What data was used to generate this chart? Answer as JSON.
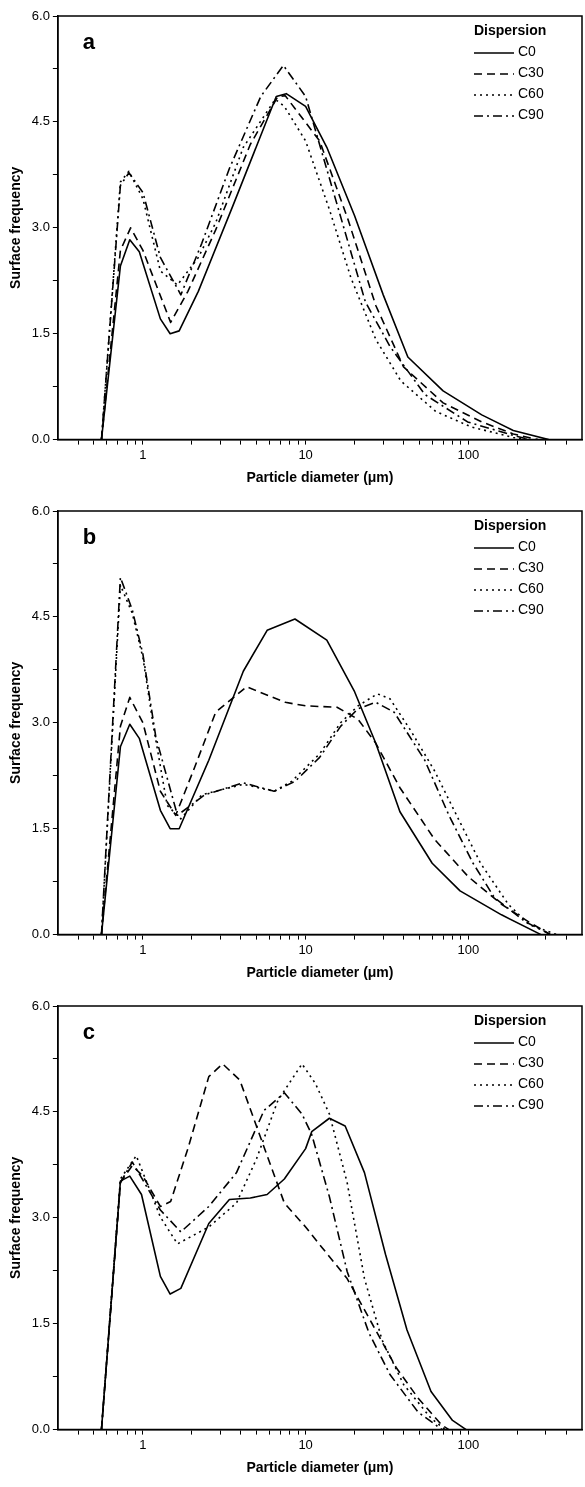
{
  "chart_data": [
    {
      "type": "line",
      "xlabel": "Particle diameter (μm)",
      "ylabel": "Surface frequency",
      "legend_title": "Dispersion",
      "legend": "top right",
      "marker": "none",
      "log": "x",
      "annotations": [
        "a"
      ],
      "xlim": [
        0.3,
        500
      ],
      "ylim": [
        0,
        6
      ],
      "xticks": [
        {
          "value": 0.4,
          "label": null
        },
        {
          "value": 0.5,
          "label": null
        },
        {
          "value": 0.6,
          "label": null
        },
        {
          "value": 0.7,
          "label": null
        },
        {
          "value": 0.8,
          "label": null
        },
        {
          "value": 0.9,
          "label": null
        },
        1,
        {
          "value": 2,
          "label": null
        },
        {
          "value": 3,
          "label": null
        },
        {
          "value": 4,
          "label": null
        },
        {
          "value": 5,
          "label": null
        },
        {
          "value": 6,
          "label": null
        },
        {
          "value": 7,
          "label": null
        },
        {
          "value": 8,
          "label": null
        },
        {
          "value": 9,
          "label": null
        },
        10,
        {
          "value": 20,
          "label": null
        },
        {
          "value": 30,
          "label": null
        },
        {
          "value": 40,
          "label": null
        },
        {
          "value": 50,
          "label": null
        },
        {
          "value": 60,
          "label": null
        },
        {
          "value": 70,
          "label": null
        },
        {
          "value": 80,
          "label": null
        },
        {
          "value": 90,
          "label": null
        },
        100,
        {
          "value": 200,
          "label": null
        },
        {
          "value": 300,
          "label": null
        },
        {
          "value": 400,
          "label": null
        }
      ],
      "yticks": [
        {
          "value": 0,
          "label": "0.0"
        },
        {
          "value": 0.75,
          "label": null
        },
        {
          "value": 1.5,
          "label": "1.5"
        },
        {
          "value": 2.25,
          "label": null
        },
        {
          "value": 3,
          "label": "3.0"
        },
        {
          "value": 3.75,
          "label": null
        },
        {
          "value": 4.5,
          "label": "4.5"
        },
        {
          "value": 5.25,
          "label": null
        },
        {
          "value": 6,
          "label": "6.0"
        }
      ],
      "series": [
        {
          "name": "C0",
          "color": "#000000",
          "line_style": "solid",
          "x": [
            0.556,
            0.727,
            0.83,
            0.95,
            1.28,
            1.47,
            1.67,
            2.19,
            3.57,
            5.04,
            6.6,
            7.6,
            10,
            13.5,
            20,
            30,
            42.5,
            70,
            121,
            189,
            312
          ],
          "values": [
            0,
            2.46,
            2.83,
            2.66,
            1.71,
            1.5,
            1.54,
            2.1,
            3.31,
            4.18,
            4.86,
            4.9,
            4.72,
            4.14,
            3.17,
            2.05,
            1.17,
            0.69,
            0.35,
            0.13,
            0
          ]
        },
        {
          "name": "C30",
          "color": "#000000",
          "line_style": "dashed",
          "x": [
            0.556,
            0.727,
            0.84,
            1.0,
            1.48,
            1.89,
            2.8,
            4.57,
            6.75,
            7.5,
            12.2,
            18.2,
            27,
            40,
            70,
            121,
            189,
            268
          ],
          "values": [
            0,
            2.68,
            3.0,
            2.68,
            1.66,
            2.1,
            2.97,
            4.18,
            4.86,
            4.87,
            4.23,
            3.12,
            1.9,
            1.03,
            0.52,
            0.25,
            0.08,
            0
          ]
        },
        {
          "name": "C60",
          "color": "#000000",
          "line_style": "dotted",
          "x": [
            0.556,
            0.727,
            0.82,
            1.0,
            1.28,
            1.63,
            2.19,
            2.8,
            4.14,
            6.5,
            7.4,
            10,
            14,
            19,
            27,
            38.5,
            63,
            104,
            189,
            240
          ],
          "values": [
            0,
            3.65,
            3.8,
            3.41,
            2.39,
            2.19,
            2.58,
            3.07,
            4.14,
            4.82,
            4.72,
            4.23,
            3.26,
            2.29,
            1.42,
            0.83,
            0.4,
            0.18,
            0.03,
            0
          ]
        },
        {
          "name": "C90",
          "color": "#000000",
          "line_style": "dashdot",
          "x": [
            0.556,
            0.727,
            0.82,
            1.0,
            1.28,
            1.71,
            2.3,
            3.4,
            5.3,
            7.3,
            10,
            15.7,
            23.3,
            33,
            54,
            99,
            189,
            240
          ],
          "values": [
            0,
            3.6,
            3.78,
            3.5,
            2.58,
            2.05,
            2.78,
            3.84,
            4.86,
            5.3,
            4.86,
            3.31,
            1.95,
            1.32,
            0.64,
            0.25,
            0.06,
            0
          ]
        }
      ]
    },
    {
      "type": "line",
      "xlabel": "Particle diameter (μm)",
      "ylabel": "Surface frequency",
      "legend_title": "Dispersion",
      "legend": "top right",
      "marker": "none",
      "log": "x",
      "annotations": [
        "b"
      ],
      "xlim": [
        0.3,
        500
      ],
      "ylim": [
        0,
        6
      ],
      "xticks": [
        {
          "value": 0.4,
          "label": null
        },
        {
          "value": 0.5,
          "label": null
        },
        {
          "value": 0.6,
          "label": null
        },
        {
          "value": 0.7,
          "label": null
        },
        {
          "value": 0.8,
          "label": null
        },
        {
          "value": 0.9,
          "label": null
        },
        1,
        {
          "value": 2,
          "label": null
        },
        {
          "value": 3,
          "label": null
        },
        {
          "value": 4,
          "label": null
        },
        {
          "value": 5,
          "label": null
        },
        {
          "value": 6,
          "label": null
        },
        {
          "value": 7,
          "label": null
        },
        {
          "value": 8,
          "label": null
        },
        {
          "value": 9,
          "label": null
        },
        10,
        {
          "value": 20,
          "label": null
        },
        {
          "value": 30,
          "label": null
        },
        {
          "value": 40,
          "label": null
        },
        {
          "value": 50,
          "label": null
        },
        {
          "value": 60,
          "label": null
        },
        {
          "value": 70,
          "label": null
        },
        {
          "value": 80,
          "label": null
        },
        {
          "value": 90,
          "label": null
        },
        100,
        {
          "value": 200,
          "label": null
        },
        {
          "value": 300,
          "label": null
        },
        {
          "value": 400,
          "label": null
        }
      ],
      "yticks": [
        {
          "value": 0,
          "label": "0.0"
        },
        {
          "value": 0.75,
          "label": null
        },
        {
          "value": 1.5,
          "label": "1.5"
        },
        {
          "value": 2.25,
          "label": null
        },
        {
          "value": 3,
          "label": "3.0"
        },
        {
          "value": 3.75,
          "label": null
        },
        {
          "value": 4.5,
          "label": "4.5"
        },
        {
          "value": 5.25,
          "label": null
        },
        {
          "value": 6,
          "label": "6.0"
        }
      ],
      "series": [
        {
          "name": "C0",
          "color": "#000000",
          "line_style": "solid",
          "x": [
            0.556,
            0.727,
            0.83,
            0.95,
            1.28,
            1.47,
            1.67,
            2.54,
            4.14,
            5.8,
            8.6,
            13.5,
            20,
            27,
            38,
            60,
            89,
            160,
            280
          ],
          "values": [
            0,
            2.66,
            2.98,
            2.78,
            1.76,
            1.5,
            1.5,
            2.47,
            3.73,
            4.31,
            4.47,
            4.17,
            3.44,
            2.71,
            1.74,
            1.01,
            0.62,
            0.28,
            0
          ]
        },
        {
          "name": "C30",
          "color": "#000000",
          "line_style": "dashed",
          "x": [
            0.556,
            0.727,
            0.83,
            1.0,
            1.28,
            1.59,
            2.08,
            2.8,
            4.34,
            7.5,
            10,
            15.6,
            21,
            27,
            38,
            62,
            100,
            160,
            235,
            320
          ],
          "values": [
            0,
            2.95,
            3.36,
            3.0,
            2.03,
            1.69,
            2.37,
            3.15,
            3.51,
            3.29,
            3.24,
            3.22,
            3.05,
            2.71,
            2.08,
            1.35,
            0.82,
            0.43,
            0.18,
            0
          ]
        },
        {
          "name": "C60",
          "color": "#000000",
          "line_style": "dotted",
          "x": [
            0.556,
            0.727,
            0.86,
            1.0,
            1.16,
            1.41,
            1.71,
            2.3,
            4.14,
            6.4,
            8.2,
            12.2,
            16.4,
            21,
            27.6,
            33,
            44,
            62,
            89,
            119,
            176,
            237,
            350
          ],
          "values": [
            0,
            4.95,
            4.55,
            3.92,
            2.95,
            1.83,
            1.64,
            1.98,
            2.13,
            2.03,
            2.17,
            2.56,
            3.0,
            3.24,
            3.41,
            3.34,
            2.9,
            2.32,
            1.59,
            1.01,
            0.43,
            0.14,
            0
          ]
        },
        {
          "name": "C90",
          "color": "#000000",
          "line_style": "dashdot",
          "x": [
            0.556,
            0.727,
            0.86,
            1.0,
            1.2,
            1.63,
            2.4,
            4.14,
            6.4,
            8.6,
            12.2,
            16.4,
            21,
            27,
            35,
            54,
            76,
            107,
            145,
            225,
            320
          ],
          "values": [
            0,
            5.06,
            4.6,
            3.97,
            2.8,
            1.69,
            1.98,
            2.15,
            2.03,
            2.17,
            2.51,
            2.95,
            3.2,
            3.29,
            3.15,
            2.47,
            1.69,
            1.01,
            0.52,
            0.18,
            0
          ]
        }
      ]
    },
    {
      "type": "line",
      "xlabel": "Particle diameter (μm)",
      "ylabel": "Surface frequency",
      "legend_title": "Dispersion",
      "legend": "top right",
      "marker": "none",
      "log": "x",
      "annotations": [
        "c"
      ],
      "xlim": [
        0.3,
        500
      ],
      "ylim": [
        0,
        6
      ],
      "xticks": [
        {
          "value": 0.4,
          "label": null
        },
        {
          "value": 0.5,
          "label": null
        },
        {
          "value": 0.6,
          "label": null
        },
        {
          "value": 0.7,
          "label": null
        },
        {
          "value": 0.8,
          "label": null
        },
        {
          "value": 0.9,
          "label": null
        },
        1,
        {
          "value": 2,
          "label": null
        },
        {
          "value": 3,
          "label": null
        },
        {
          "value": 4,
          "label": null
        },
        {
          "value": 5,
          "label": null
        },
        {
          "value": 6,
          "label": null
        },
        {
          "value": 7,
          "label": null
        },
        {
          "value": 8,
          "label": null
        },
        {
          "value": 9,
          "label": null
        },
        10,
        {
          "value": 20,
          "label": null
        },
        {
          "value": 30,
          "label": null
        },
        {
          "value": 40,
          "label": null
        },
        {
          "value": 50,
          "label": null
        },
        {
          "value": 60,
          "label": null
        },
        {
          "value": 70,
          "label": null
        },
        {
          "value": 80,
          "label": null
        },
        {
          "value": 90,
          "label": null
        },
        100,
        {
          "value": 200,
          "label": null
        },
        {
          "value": 300,
          "label": null
        },
        {
          "value": 400,
          "label": null
        }
      ],
      "yticks": [
        {
          "value": 0,
          "label": "0.0"
        },
        {
          "value": 0.75,
          "label": null
        },
        {
          "value": 1.5,
          "label": "1.5"
        },
        {
          "value": 2.25,
          "label": null
        },
        {
          "value": 3,
          "label": "3.0"
        },
        {
          "value": 3.75,
          "label": null
        },
        {
          "value": 4.5,
          "label": "4.5"
        },
        {
          "value": 5.25,
          "label": null
        },
        {
          "value": 6,
          "label": "6.0"
        }
      ],
      "series": [
        {
          "name": "C0",
          "color": "#000000",
          "line_style": "solid",
          "x": [
            0.556,
            0.727,
            0.83,
            0.98,
            1.28,
            1.47,
            1.71,
            2.54,
            3.4,
            4.57,
            5.8,
            7.4,
            10,
            10.9,
            14,
            17.5,
            23,
            31,
            42,
            59,
            80,
            97
          ],
          "values": [
            0,
            3.52,
            3.59,
            3.33,
            2.17,
            1.92,
            2.0,
            2.92,
            3.26,
            3.28,
            3.33,
            3.55,
            3.98,
            4.22,
            4.41,
            4.3,
            3.64,
            2.48,
            1.41,
            0.54,
            0.13,
            0
          ]
        },
        {
          "name": "C30",
          "color": "#000000",
          "line_style": "dashed",
          "x": [
            0.556,
            0.727,
            0.86,
            1.0,
            1.28,
            1.48,
            1.89,
            2.54,
            3.09,
            3.94,
            5.3,
            7.4,
            10,
            12.1,
            18,
            25.5,
            36,
            49,
            69,
            76
          ],
          "values": [
            0,
            3.5,
            3.74,
            3.59,
            3.16,
            3.23,
            3.98,
            5.0,
            5.18,
            4.95,
            4.13,
            3.21,
            2.87,
            2.63,
            2.14,
            1.51,
            0.88,
            0.45,
            0.06,
            0
          ]
        },
        {
          "name": "C60",
          "color": "#000000",
          "line_style": "dotted",
          "x": [
            0.556,
            0.727,
            0.91,
            1.28,
            1.63,
            2.54,
            3.76,
            5.0,
            6.75,
            9.5,
            11.5,
            14,
            18,
            23,
            29.5,
            40,
            59,
            72
          ],
          "values": [
            0,
            3.55,
            3.88,
            3.01,
            2.63,
            2.87,
            3.21,
            3.84,
            4.66,
            5.18,
            4.9,
            4.47,
            3.5,
            2.14,
            1.27,
            0.64,
            0.16,
            0
          ]
        },
        {
          "name": "C90",
          "color": "#000000",
          "line_style": "dashdot",
          "x": [
            0.556,
            0.727,
            0.86,
            1.28,
            1.71,
            2.54,
            3.76,
            5.55,
            7.4,
            9.5,
            10.9,
            14,
            18,
            24.5,
            33,
            49,
            69
          ],
          "values": [
            0,
            3.5,
            3.79,
            3.11,
            2.8,
            3.16,
            3.64,
            4.52,
            4.77,
            4.47,
            4.18,
            3.3,
            2.24,
            1.37,
            0.78,
            0.25,
            0
          ]
        }
      ]
    }
  ]
}
